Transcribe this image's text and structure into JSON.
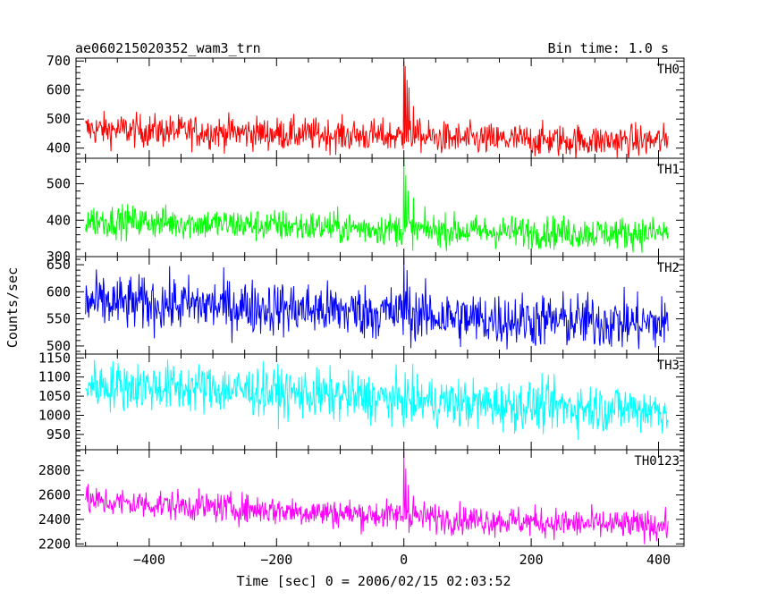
{
  "chart_data": {
    "type": "line",
    "title_left": "ae060215020352_wam3_trn",
    "title_right": "Bin time: 1.0 s",
    "xlabel": "Time [sec] 0 = 2006/02/15 02:03:52",
    "ylabel": "Counts/sec",
    "xlim": [
      -515,
      440
    ],
    "x_tick_labels": [
      "−400",
      "−200",
      "0",
      "200",
      "400"
    ],
    "x_ticks": [
      -400,
      -200,
      0,
      200,
      400
    ],
    "x_data_range": [
      -500,
      415
    ],
    "bin_time": 1.0,
    "panels": [
      {
        "name": "TH0",
        "color": "#ff0000",
        "ylim": [
          365,
          710
        ],
        "y_ticks": [
          400,
          500,
          600,
          700
        ],
        "y_tick_labels": [
          "400",
          "500",
          "600",
          "700"
        ],
        "baseline": [
          [
            -500,
            465
          ],
          [
            -300,
            455
          ],
          [
            -100,
            445
          ],
          [
            0,
            440
          ],
          [
            100,
            430
          ],
          [
            300,
            425
          ],
          [
            415,
            425
          ]
        ],
        "noise": 28,
        "peaks": [
          [
            0,
            710
          ],
          [
            2,
            690
          ],
          [
            5,
            640
          ],
          [
            8,
            600
          ],
          [
            15,
            560
          ],
          [
            25,
            520
          ]
        ]
      },
      {
        "name": "TH1",
        "color": "#00ff00",
        "ylim": [
          300,
          570
        ],
        "y_ticks": [
          300,
          400,
          500
        ],
        "y_tick_labels": [
          "300",
          "400",
          "500"
        ],
        "baseline": [
          [
            -500,
            400
          ],
          [
            -300,
            390
          ],
          [
            -100,
            380
          ],
          [
            0,
            375
          ],
          [
            100,
            370
          ],
          [
            300,
            365
          ],
          [
            415,
            365
          ]
        ],
        "noise": 22,
        "peaks": [
          [
            0,
            570
          ],
          [
            3,
            520
          ],
          [
            7,
            480
          ],
          [
            15,
            450
          ]
        ]
      },
      {
        "name": "TH2",
        "color": "#0000ff",
        "ylim": [
          485,
          665
        ],
        "y_ticks": [
          500,
          550,
          600,
          650
        ],
        "y_tick_labels": [
          "500",
          "550",
          "600",
          "650"
        ],
        "baseline": [
          [
            -500,
            580
          ],
          [
            -300,
            575
          ],
          [
            -100,
            565
          ],
          [
            0,
            560
          ],
          [
            100,
            550
          ],
          [
            300,
            545
          ],
          [
            415,
            540
          ]
        ],
        "noise": 25,
        "peaks": [
          [
            0,
            665
          ],
          [
            5,
            640
          ]
        ]
      },
      {
        "name": "TH3",
        "color": "#00ffff",
        "ylim": [
          910,
          1160
        ],
        "y_ticks": [
          950,
          1000,
          1050,
          1100,
          1150
        ],
        "y_tick_labels": [
          "950",
          "1000",
          "1050",
          "1100",
          "1150"
        ],
        "baseline": [
          [
            -500,
            1080
          ],
          [
            -300,
            1070
          ],
          [
            -100,
            1050
          ],
          [
            0,
            1040
          ],
          [
            100,
            1030
          ],
          [
            300,
            1020
          ],
          [
            415,
            1015
          ]
        ],
        "noise": 32,
        "peaks": []
      },
      {
        "name": "TH0123",
        "color": "#ff00ff",
        "ylim": [
          2180,
          2970
        ],
        "y_ticks": [
          2200,
          2400,
          2600,
          2800
        ],
        "y_tick_labels": [
          "2200",
          "2400",
          "2600",
          "2800"
        ],
        "baseline": [
          [
            -500,
            2550
          ],
          [
            -300,
            2500
          ],
          [
            -100,
            2450
          ],
          [
            0,
            2430
          ],
          [
            100,
            2400
          ],
          [
            300,
            2360
          ],
          [
            415,
            2350
          ]
        ],
        "noise": 60,
        "peaks": [
          [
            0,
            2970
          ],
          [
            3,
            2850
          ],
          [
            7,
            2700
          ],
          [
            15,
            2600
          ]
        ]
      }
    ]
  }
}
